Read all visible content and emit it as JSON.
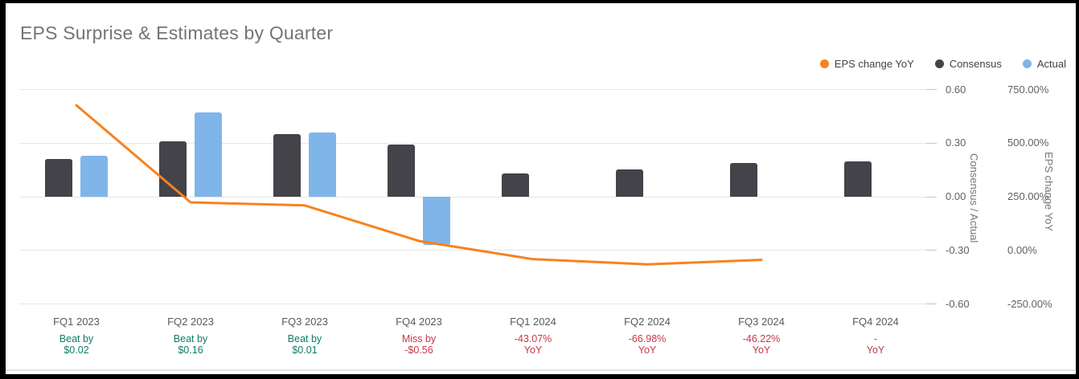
{
  "title": "EPS Surprise & Estimates by Quarter",
  "legend": {
    "items": [
      {
        "label": "EPS change YoY",
        "color": "#f8821d"
      },
      {
        "label": "Consensus",
        "color": "#434349"
      },
      {
        "label": "Actual",
        "color": "#7fb5e9"
      }
    ]
  },
  "colors": {
    "beat": "#0f7d64",
    "miss": "#c5384a",
    "line": "#f8821d",
    "consensus_bar": "#434349",
    "actual_bar": "#7fb5e9"
  },
  "chart_data": {
    "type": "combo-bar-line",
    "categories": [
      "FQ1 2023",
      "FQ2 2023",
      "FQ3 2023",
      "FQ4 2023",
      "FQ1 2024",
      "FQ2 2024",
      "FQ3 2024",
      "FQ4 2024"
    ],
    "series": [
      {
        "name": "Consensus",
        "type": "bar",
        "axis": "left",
        "color": "#434349",
        "values": [
          0.21,
          0.31,
          0.35,
          0.29,
          0.13,
          0.155,
          0.19,
          0.2
        ]
      },
      {
        "name": "Actual",
        "type": "bar",
        "axis": "left",
        "color": "#7fb5e9",
        "values": [
          0.23,
          0.47,
          0.36,
          -0.27,
          null,
          null,
          null,
          null
        ]
      },
      {
        "name": "EPS change YoY",
        "type": "line",
        "axis": "right",
        "color": "#f8821d",
        "values": [
          675,
          222,
          208,
          42,
          -43.07,
          -66.98,
          -46.22,
          null
        ]
      }
    ],
    "left_axis": {
      "title": "Consensus / Actual",
      "ticks": [
        "0.60",
        "0.30",
        "0.00",
        "-0.30",
        "-0.60"
      ],
      "range": [
        -0.6,
        0.6
      ]
    },
    "right_axis": {
      "title": "EPS change YoY",
      "ticks": [
        "750.00%",
        "500.00%",
        "250.00%",
        "0.00%",
        "-250.00%"
      ],
      "range": [
        -250,
        750
      ]
    },
    "grid": "horizontal",
    "legend_position": "top-right",
    "annotations": [
      {
        "line1": "Beat by",
        "line2": "$0.02",
        "tone": "beat"
      },
      {
        "line1": "Beat by",
        "line2": "$0.16",
        "tone": "beat"
      },
      {
        "line1": "Beat by",
        "line2": "$0.01",
        "tone": "beat"
      },
      {
        "line1": "Miss by",
        "line2": "-$0.56",
        "tone": "miss"
      },
      {
        "line1": "-43.07%",
        "line2": "YoY",
        "tone": "miss"
      },
      {
        "line1": "-66.98%",
        "line2": "YoY",
        "tone": "miss"
      },
      {
        "line1": "-46.22%",
        "line2": "YoY",
        "tone": "miss"
      },
      {
        "line1": "-",
        "line2": "YoY",
        "tone": "miss"
      }
    ]
  }
}
